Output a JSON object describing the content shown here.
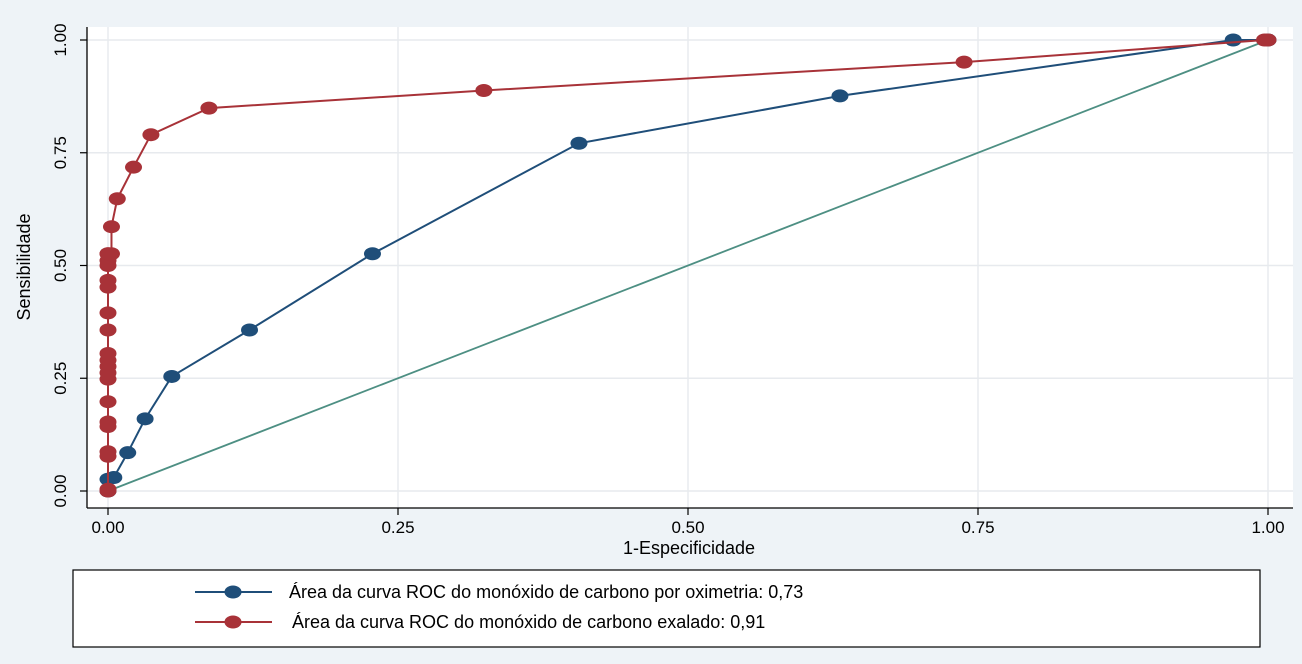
{
  "chart_data": {
    "type": "line",
    "title": "",
    "xlabel": "1-Especificidade",
    "ylabel": "Sensibilidade",
    "xlim": [
      0,
      1
    ],
    "ylim": [
      0,
      1
    ],
    "xticks": [
      "0.00",
      "0.25",
      "0.50",
      "0.75",
      "1.00"
    ],
    "yticks": [
      "0.00",
      "0.25",
      "0.50",
      "0.75",
      "1.00"
    ],
    "grid": true,
    "legend_position": "bottom",
    "reference_line": {
      "x": [
        0,
        1
      ],
      "y": [
        0,
        1
      ],
      "color": "#4d8f83"
    },
    "series": [
      {
        "name": "Área da curva ROC do monóxido de carbono por oximetria: 0,73",
        "color": "#1f4e79",
        "x": [
          0,
          0,
          0.005,
          0.017,
          0.032,
          0.055,
          0.122,
          0.228,
          0.406,
          0.631,
          0.97,
          1
        ],
        "y": [
          0,
          0.026,
          0.03,
          0.085,
          0.16,
          0.254,
          0.357,
          0.526,
          0.771,
          0.876,
          1,
          1
        ]
      },
      {
        "name": "Área da curva ROC do monóxido de carbono exalado: 0,91",
        "color": "#a83238",
        "x": [
          0,
          0,
          0,
          0,
          0,
          0,
          0,
          0,
          0,
          0,
          0,
          0,
          0,
          0,
          0,
          0,
          0,
          0,
          0,
          0,
          0.003,
          0.003,
          0.008,
          0.022,
          0.037,
          0.087,
          0.324,
          0.738,
          0.997,
          1
        ],
        "y": [
          0,
          0.004,
          0.077,
          0.087,
          0.143,
          0.153,
          0.198,
          0.248,
          0.262,
          0.276,
          0.29,
          0.305,
          0.357,
          0.395,
          0.452,
          0.467,
          0.5,
          0.511,
          0.526,
          0.526,
          0.526,
          0.586,
          0.648,
          0.718,
          0.79,
          0.849,
          0.888,
          0.951,
          1,
          1
        ]
      }
    ]
  }
}
